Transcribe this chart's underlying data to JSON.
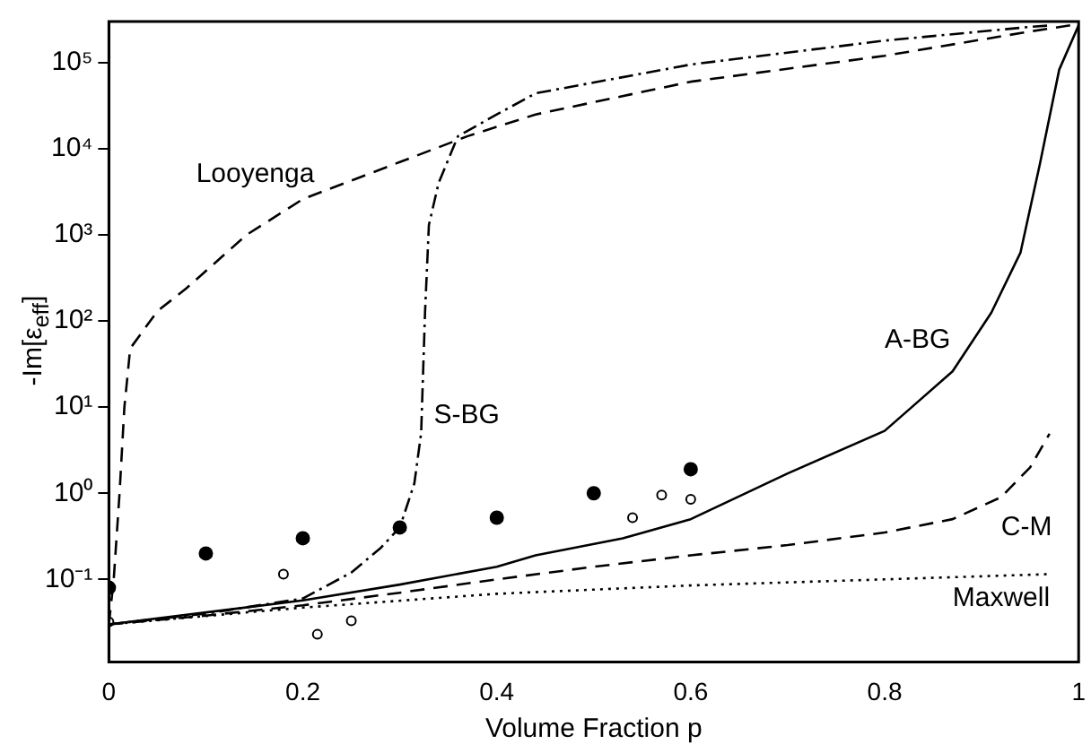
{
  "chart_data": {
    "type": "line",
    "xlabel": "Volume Fraction p",
    "ylabel": "-Im[ε$_{eff}$]",
    "xlim": [
      0,
      1
    ],
    "xticks": [
      0,
      0.2,
      0.4,
      0.6,
      0.8,
      1
    ],
    "ylim": [
      0.011,
      300000
    ],
    "log": "y",
    "yticks": [
      {
        "value": 0.1,
        "label": "10⁻¹"
      },
      {
        "value": 1,
        "label": "10⁰"
      },
      {
        "value": 10,
        "label": "10¹"
      },
      {
        "value": 100,
        "label": "10²"
      },
      {
        "value": 1000,
        "label": "10³"
      },
      {
        "value": 10000,
        "label": "10⁴"
      },
      {
        "value": 100000,
        "label": "10⁵"
      }
    ],
    "grid": false,
    "legend": false,
    "series": [
      {
        "name": "Looyenga",
        "line_style": "dashed",
        "color": "#000000",
        "x": [
          0,
          0.005,
          0.011,
          0.016,
          0.022,
          0.05,
          0.08,
          0.142,
          0.2,
          0.3,
          0.37,
          0.44,
          0.6,
          0.8,
          0.95,
          1
        ],
        "values": [
          0.03,
          0.1,
          1,
          10,
          48,
          130,
          240,
          1000,
          2600,
          7000,
          14000,
          25000,
          60000,
          120000,
          230000,
          280000
        ]
      },
      {
        "name": "S-BG",
        "line_style": "dashdot",
        "color": "#000000",
        "x": [
          0,
          0.1,
          0.2,
          0.25,
          0.28,
          0.3,
          0.315,
          0.322,
          0.326,
          0.33,
          0.34,
          0.36,
          0.4,
          0.44,
          0.6,
          0.8,
          0.95,
          0.97
        ],
        "values": [
          0.03,
          0.04,
          0.06,
          0.12,
          0.23,
          0.4,
          1.3,
          5,
          125,
          1300,
          4000,
          14000,
          25000,
          44000,
          95000,
          180000,
          260000,
          270000
        ]
      },
      {
        "name": "A-BG",
        "line_style": "solid",
        "color": "#000000",
        "x": [
          0,
          0.2,
          0.3,
          0.4,
          0.44,
          0.53,
          0.6,
          0.7,
          0.8,
          0.87,
          0.91,
          0.94,
          0.96,
          0.98,
          1
        ],
        "values": [
          0.03,
          0.057,
          0.087,
          0.14,
          0.19,
          0.3,
          0.5,
          1.7,
          5.3,
          26,
          125,
          620,
          6600,
          83000,
          270000
        ]
      },
      {
        "name": "C-M",
        "line_style": "dashed",
        "color": "#000000",
        "x": [
          0,
          0.1,
          0.2,
          0.3,
          0.4,
          0.5,
          0.6,
          0.7,
          0.8,
          0.87,
          0.92,
          0.95,
          0.97
        ],
        "values": [
          0.03,
          0.038,
          0.05,
          0.07,
          0.1,
          0.14,
          0.19,
          0.25,
          0.35,
          0.5,
          0.9,
          2,
          4.9
        ]
      },
      {
        "name": "Maxwell",
        "line_style": "dotted",
        "color": "#000000",
        "x": [
          0,
          0.2,
          0.4,
          0.6,
          0.8,
          0.97
        ],
        "values": [
          0.03,
          0.047,
          0.068,
          0.085,
          0.1,
          0.115
        ]
      },
      {
        "type": "scatter",
        "marker": "circle",
        "color": "#000000",
        "x": [
          0,
          0.1,
          0.2,
          0.3,
          0.4,
          0.5,
          0.6
        ],
        "values": [
          0.08,
          0.2,
          0.3,
          0.4,
          0.52,
          1,
          1.9
        ]
      },
      {
        "type": "scatter",
        "marker": "circle",
        "color": "#ffffff",
        "x": [
          0,
          0.18,
          0.215,
          0.25,
          0.54,
          0.57,
          0.6
        ],
        "values": [
          0.032,
          0.115,
          0.023,
          0.033,
          0.52,
          0.95,
          0.85
        ]
      }
    ]
  }
}
